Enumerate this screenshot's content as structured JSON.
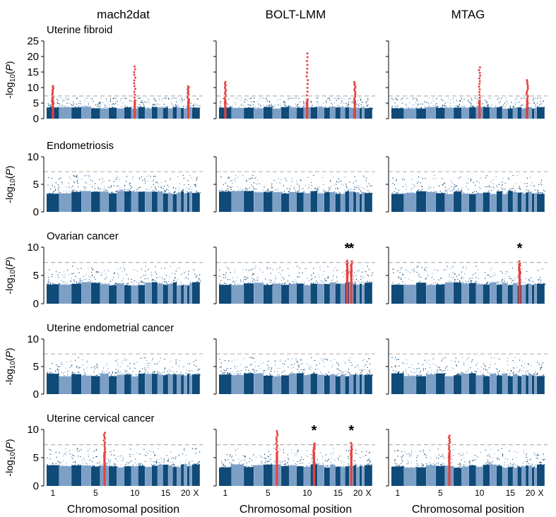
{
  "figure": {
    "method_titles": [
      "mach2dat",
      "BOLT-LMM",
      "MTAG"
    ],
    "row_titles": [
      "Uterine fibroid",
      "Endometriosis",
      "Ovarian cancer",
      "Uterine endometrial cancer",
      "Uterine cervical cancer"
    ],
    "ylabel_prefix": "-log",
    "ylabel_sub": "10",
    "ylabel_suffix_open": "(",
    "ylabel_italic": "P",
    "ylabel_suffix_close": ")",
    "xlabel": "Chromosomal position",
    "x_tick_labels": [
      "1",
      "5",
      "10",
      "15",
      "20",
      "X"
    ],
    "significance_threshold": 7.3,
    "colors": {
      "dark": "#0f4a78",
      "light": "#7c9fc6",
      "hit": "#e8413f",
      "threshold": "#b5b5b5",
      "axis": "#000000"
    }
  },
  "chart_data": [
    {
      "type": "scatter",
      "row": "Uterine fibroid",
      "method": "mach2dat",
      "ylim": [
        0,
        25
      ],
      "yticks": [
        0,
        5,
        10,
        15,
        20,
        25
      ],
      "hits": [
        {
          "chr": 1,
          "max": 10.5
        },
        {
          "chr": 10,
          "max": 16.8
        },
        {
          "chr": 21,
          "max": 10.4
        }
      ],
      "stars": []
    },
    {
      "type": "scatter",
      "row": "Uterine fibroid",
      "method": "BOLT-LMM",
      "ylim": [
        0,
        25
      ],
      "yticks": [
        0,
        5,
        10,
        15,
        20,
        25
      ],
      "hits": [
        {
          "chr": 1,
          "max": 11.8
        },
        {
          "chr": 10,
          "max": 21.0
        },
        {
          "chr": 19,
          "max": 11.8
        }
      ],
      "stars": []
    },
    {
      "type": "scatter",
      "row": "Uterine fibroid",
      "method": "MTAG",
      "ylim": [
        0,
        25
      ],
      "yticks": [
        0,
        5,
        10,
        15,
        20,
        25
      ],
      "hits": [
        {
          "chr": 10,
          "max": 16.5
        },
        {
          "chr": 19,
          "max": 12.4
        }
      ],
      "stars": []
    },
    {
      "type": "scatter",
      "row": "Endometriosis",
      "method": "mach2dat",
      "ylim": [
        0,
        10
      ],
      "yticks": [
        0,
        5,
        10
      ],
      "hits": [],
      "stars": []
    },
    {
      "type": "scatter",
      "row": "Endometriosis",
      "method": "BOLT-LMM",
      "ylim": [
        0,
        10
      ],
      "yticks": [
        0,
        5,
        10
      ],
      "hits": [],
      "stars": []
    },
    {
      "type": "scatter",
      "row": "Endometriosis",
      "method": "MTAG",
      "ylim": [
        0,
        10
      ],
      "yticks": [
        0,
        5,
        10
      ],
      "hits": [],
      "stars": []
    },
    {
      "type": "scatter",
      "row": "Ovarian cancer",
      "method": "mach2dat",
      "ylim": [
        0,
        10
      ],
      "yticks": [
        0,
        5,
        10
      ],
      "hits": [],
      "stars": []
    },
    {
      "type": "scatter",
      "row": "Ovarian cancer",
      "method": "BOLT-LMM",
      "ylim": [
        0,
        10
      ],
      "yticks": [
        0,
        5,
        10
      ],
      "hits": [
        {
          "chr": 17,
          "max": 7.6
        },
        {
          "chr": 18,
          "max": 7.5
        }
      ],
      "stars": [
        {
          "chr": 17,
          "label": "*"
        },
        {
          "chr": 18,
          "label": "*"
        }
      ]
    },
    {
      "type": "scatter",
      "row": "Ovarian cancer",
      "method": "MTAG",
      "ylim": [
        0,
        10
      ],
      "yticks": [
        0,
        5,
        10
      ],
      "hits": [
        {
          "chr": 17,
          "max": 7.5
        }
      ],
      "stars": [
        {
          "chr": 17,
          "label": "*"
        }
      ]
    },
    {
      "type": "scatter",
      "row": "Uterine endometrial cancer",
      "method": "mach2dat",
      "ylim": [
        0,
        10
      ],
      "yticks": [
        0,
        5,
        10
      ],
      "hits": [],
      "stars": []
    },
    {
      "type": "scatter",
      "row": "Uterine endometrial cancer",
      "method": "BOLT-LMM",
      "ylim": [
        0,
        10
      ],
      "yticks": [
        0,
        5,
        10
      ],
      "hits": [],
      "stars": []
    },
    {
      "type": "scatter",
      "row": "Uterine endometrial cancer",
      "method": "MTAG",
      "ylim": [
        0,
        10
      ],
      "yticks": [
        0,
        5,
        10
      ],
      "hits": [],
      "stars": []
    },
    {
      "type": "scatter",
      "row": "Uterine cervical cancer",
      "method": "mach2dat",
      "ylim": [
        0,
        10
      ],
      "yticks": [
        0,
        5,
        10
      ],
      "hits": [
        {
          "chr": 6,
          "max": 9.4
        }
      ],
      "stars": []
    },
    {
      "type": "scatter",
      "row": "Uterine cervical cancer",
      "method": "BOLT-LMM",
      "ylim": [
        0,
        10
      ],
      "yticks": [
        0,
        5,
        10
      ],
      "hits": [
        {
          "chr": 6,
          "max": 9.7
        },
        {
          "chr": 11,
          "max": 7.5
        },
        {
          "chr": 18,
          "max": 7.6
        }
      ],
      "stars": [
        {
          "chr": 11,
          "label": "*"
        },
        {
          "chr": 18,
          "label": "*"
        }
      ]
    },
    {
      "type": "scatter",
      "row": "Uterine cervical cancer",
      "method": "MTAG",
      "ylim": [
        0,
        10
      ],
      "yticks": [
        0,
        5,
        10
      ],
      "hits": [
        {
          "chr": 6,
          "max": 8.9
        }
      ],
      "stars": []
    }
  ]
}
